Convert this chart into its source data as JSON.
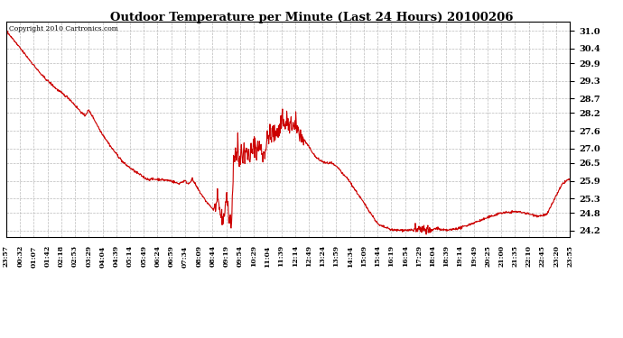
{
  "title": "Outdoor Temperature per Minute (Last 24 Hours) 20100206",
  "copyright_text": "Copyright 2010 Cartronics.com",
  "line_color": "#cc0000",
  "background_color": "#ffffff",
  "grid_color": "#aaaaaa",
  "yticks": [
    24.2,
    24.8,
    25.3,
    25.9,
    26.5,
    27.0,
    27.6,
    28.2,
    28.7,
    29.3,
    29.9,
    30.4,
    31.0
  ],
  "ylim": [
    24.0,
    31.3
  ],
  "xtick_labels": [
    "23:57",
    "00:32",
    "01:07",
    "01:42",
    "02:18",
    "02:53",
    "03:29",
    "04:04",
    "04:39",
    "05:14",
    "05:49",
    "06:24",
    "06:59",
    "07:34",
    "08:09",
    "08:44",
    "09:19",
    "09:54",
    "10:29",
    "11:04",
    "11:39",
    "12:14",
    "12:49",
    "13:24",
    "13:59",
    "14:34",
    "15:09",
    "15:44",
    "16:19",
    "16:54",
    "17:29",
    "18:04",
    "18:39",
    "19:14",
    "19:49",
    "20:25",
    "21:00",
    "21:35",
    "22:10",
    "22:45",
    "23:20",
    "23:55"
  ]
}
